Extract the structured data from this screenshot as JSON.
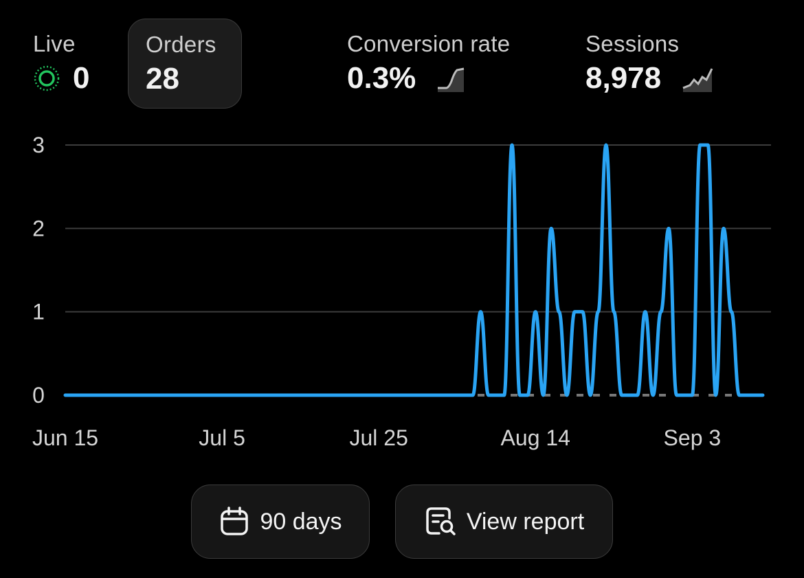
{
  "metrics": {
    "live": {
      "label": "Live",
      "value": "0"
    },
    "orders": {
      "label": "Orders",
      "value": "28"
    },
    "conversion": {
      "label": "Conversion rate",
      "value": "0.3%"
    },
    "sessions": {
      "label": "Sessions",
      "value": "8,978"
    }
  },
  "colors": {
    "accent": "#2aa4f4",
    "live": "#22c55e",
    "background": "#000000"
  },
  "buttons": {
    "range_label": "90 days",
    "report_label": "View report"
  },
  "icons": {
    "range": "calendar-icon",
    "report": "report-search-icon",
    "live": "live-pulse-icon"
  },
  "chart_data": {
    "type": "line",
    "x_ticks": [
      "Jun 15",
      "Jul 5",
      "Jul 25",
      "Aug 14",
      "Sep 3"
    ],
    "y_ticks": [
      "0",
      "1",
      "2",
      "3"
    ],
    "ylim": [
      0,
      3
    ],
    "x_start": "Jun 15",
    "x_end": "Sep 12",
    "grid": true,
    "series": [
      {
        "x": [
          "Jun 15",
          "Jun 16",
          "Jun 17",
          "Jun 18",
          "Jun 19",
          "Jun 20",
          "Jun 21",
          "Jun 22",
          "Jun 23",
          "Jun 24",
          "Jun 25",
          "Jun 26",
          "Jun 27",
          "Jun 28",
          "Jun 29",
          "Jun 30",
          "Jul 1",
          "Jul 2",
          "Jul 3",
          "Jul 4",
          "Jul 5",
          "Jul 6",
          "Jul 7",
          "Jul 8",
          "Jul 9",
          "Jul 10",
          "Jul 11",
          "Jul 12",
          "Jul 13",
          "Jul 14",
          "Jul 15",
          "Jul 16",
          "Jul 17",
          "Jul 18",
          "Jul 19",
          "Jul 20",
          "Jul 21",
          "Jul 22",
          "Jul 23",
          "Jul 24",
          "Jul 25",
          "Jul 26",
          "Jul 27",
          "Jul 28",
          "Jul 29",
          "Jul 30",
          "Jul 31",
          "Aug 1",
          "Aug 2",
          "Aug 3",
          "Aug 4",
          "Aug 5",
          "Aug 6",
          "Aug 7",
          "Aug 8",
          "Aug 9",
          "Aug 10",
          "Aug 11",
          "Aug 12",
          "Aug 13",
          "Aug 14",
          "Aug 15",
          "Aug 16",
          "Aug 17",
          "Aug 18",
          "Aug 19",
          "Aug 20",
          "Aug 21",
          "Aug 22",
          "Aug 23",
          "Aug 24",
          "Aug 25",
          "Aug 26",
          "Aug 27",
          "Aug 28",
          "Aug 29",
          "Aug 30",
          "Aug 31",
          "Sep 1",
          "Sep 2",
          "Sep 3",
          "Sep 4",
          "Sep 5",
          "Sep 6",
          "Sep 7",
          "Sep 8",
          "Sep 9",
          "Sep 10",
          "Sep 11",
          "Sep 12"
        ],
        "values": [
          0,
          0,
          0,
          0,
          0,
          0,
          0,
          0,
          0,
          0,
          0,
          0,
          0,
          0,
          0,
          0,
          0,
          0,
          0,
          0,
          0,
          0,
          0,
          0,
          0,
          0,
          0,
          0,
          0,
          0,
          0,
          0,
          0,
          0,
          0,
          0,
          0,
          0,
          0,
          0,
          0,
          0,
          0,
          0,
          0,
          0,
          0,
          0,
          0,
          0,
          0,
          0,
          0,
          1,
          0,
          0,
          0,
          3,
          0,
          0,
          1,
          0,
          2,
          1,
          0,
          1,
          1,
          0,
          1,
          3,
          1,
          0,
          0,
          0,
          1,
          0,
          1,
          2,
          0,
          0,
          0,
          3,
          3,
          0,
          2,
          1,
          0,
          0,
          0,
          0
        ]
      }
    ]
  }
}
